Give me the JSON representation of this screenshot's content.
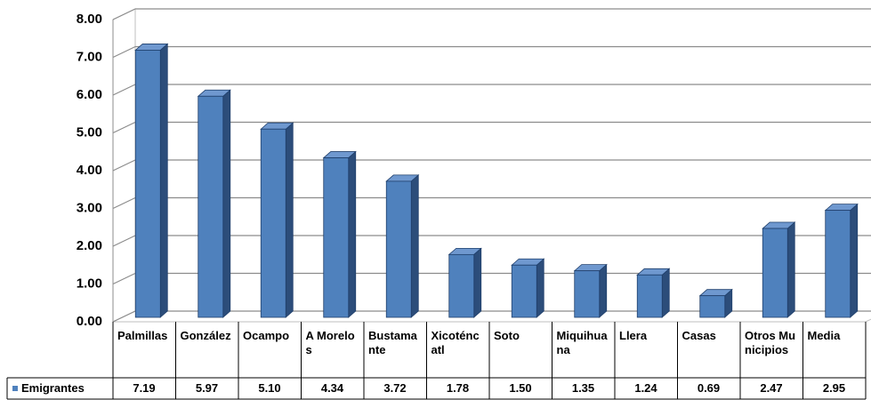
{
  "chart_data": {
    "type": "bar3d",
    "categories": [
      "Palmillas",
      "González",
      "Ocampo",
      "A Morelos",
      "Bustamante",
      "Xicoténcatl",
      "Soto",
      "Miquihuana",
      "Llera",
      "Casas",
      "Otros Municipios",
      "Media"
    ],
    "series": [
      {
        "name": "Emigrantes",
        "color": "#4f81bd",
        "values": [
          7.19,
          5.97,
          5.1,
          4.34,
          3.72,
          1.78,
          1.5,
          1.35,
          1.24,
          0.69,
          2.47,
          2.95
        ],
        "value_labels": [
          "7.19",
          "5.97",
          "5.10",
          "4.34",
          "3.72",
          "1.78",
          "1.50",
          "1.35",
          "1.24",
          "0.69",
          "2.47",
          "2.95"
        ]
      }
    ],
    "ylim": [
      0,
      8
    ],
    "yticks": [
      {
        "value": 0,
        "label": "0.00"
      },
      {
        "value": 1,
        "label": "1.00"
      },
      {
        "value": 2,
        "label": "2.00"
      },
      {
        "value": 3,
        "label": "3.00"
      },
      {
        "value": 4,
        "label": "4.00"
      },
      {
        "value": 5,
        "label": "5.00"
      },
      {
        "value": 6,
        "label": "6.00"
      },
      {
        "value": 7,
        "label": "7.00"
      },
      {
        "value": 8,
        "label": "8.00"
      }
    ],
    "grid": true
  }
}
